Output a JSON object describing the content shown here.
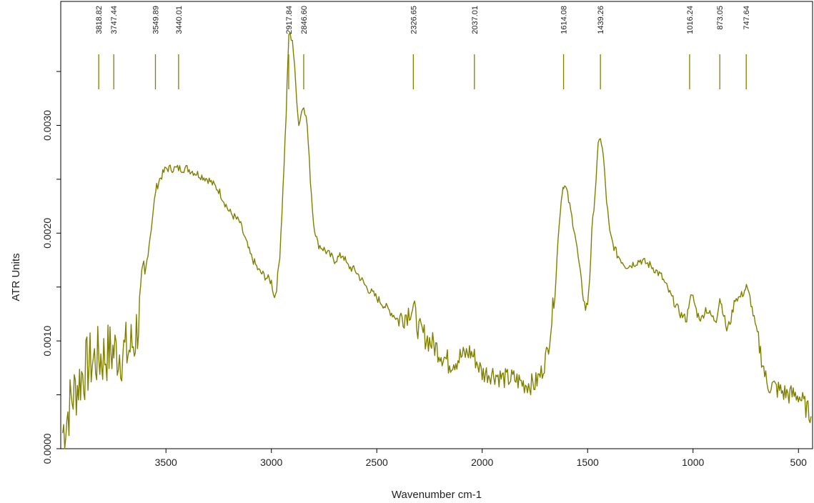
{
  "chart_data": {
    "type": "line",
    "title": "",
    "xlabel": "Wavenumber cm-1",
    "ylabel": "ATR Units",
    "x_reversed": true,
    "xlim": [
      3999,
      433
    ],
    "ylim": [
      0.0,
      0.00415
    ],
    "x_ticks": [
      3500,
      3000,
      2500,
      2000,
      1500,
      1000,
      500
    ],
    "y_ticks": [
      0.0,
      0.001,
      0.002,
      0.003
    ],
    "y_tick_labels": [
      "0.0000",
      "0.0010",
      "0.0020",
      "0.0030"
    ],
    "y_minor_ticks": [
      0.0005,
      0.0015,
      0.0025,
      0.0035
    ],
    "grid": false,
    "line_color": "#808000",
    "series": [
      {
        "x": [
          3990,
          3950,
          3900,
          3860,
          3818,
          3800,
          3770,
          3747,
          3720,
          3700,
          3680,
          3650,
          3620,
          3600,
          3580,
          3560,
          3549,
          3530,
          3500,
          3470,
          3440,
          3400,
          3350,
          3300,
          3250,
          3200,
          3150,
          3100,
          3060,
          3030,
          3000,
          2985,
          2975,
          2960,
          2945,
          2930,
          2917,
          2900,
          2885,
          2870,
          2860,
          2846,
          2830,
          2815,
          2800,
          2780,
          2750,
          2700,
          2660,
          2640,
          2600,
          2550,
          2500,
          2450,
          2400,
          2360,
          2340,
          2326,
          2300,
          2250,
          2200,
          2160,
          2100,
          2060,
          2037,
          2000,
          1950,
          1900,
          1850,
          1800,
          1750,
          1720,
          1690,
          1670,
          1650,
          1635,
          1620,
          1614,
          1600,
          1580,
          1560,
          1540,
          1520,
          1510,
          1500,
          1490,
          1480,
          1460,
          1450,
          1439,
          1425,
          1410,
          1395,
          1380,
          1360,
          1340,
          1320,
          1300,
          1250,
          1200,
          1150,
          1100,
          1060,
          1030,
          1016,
          1000,
          980,
          960,
          940,
          920,
          900,
          890,
          873,
          860,
          840,
          820,
          800,
          780,
          760,
          747,
          730,
          710,
          690,
          670,
          650,
          620,
          600,
          570,
          540,
          500,
          470,
          440
        ],
        "y": [
          0.00015,
          0.00045,
          0.00068,
          0.0008,
          0.00085,
          0.00085,
          0.0009,
          0.0009,
          0.0009,
          0.0009,
          0.0009,
          0.001,
          0.0013,
          0.0016,
          0.0019,
          0.0022,
          0.0024,
          0.0025,
          0.0026,
          0.0026,
          0.0026,
          0.0026,
          0.00255,
          0.0025,
          0.0024,
          0.0022,
          0.0021,
          0.0018,
          0.00165,
          0.0016,
          0.00155,
          0.0014,
          0.0015,
          0.0018,
          0.0024,
          0.0031,
          0.00385,
          0.0038,
          0.0034,
          0.003,
          0.0031,
          0.0032,
          0.003,
          0.0025,
          0.0021,
          0.0019,
          0.00185,
          0.00175,
          0.0018,
          0.0017,
          0.00165,
          0.0015,
          0.0014,
          0.0013,
          0.0012,
          0.00125,
          0.0013,
          0.0013,
          0.0011,
          0.001,
          0.0009,
          0.0008,
          0.00085,
          0.0009,
          0.00085,
          0.0007,
          0.0007,
          0.00065,
          0.00065,
          0.0006,
          0.0006,
          0.0007,
          0.0009,
          0.0012,
          0.0016,
          0.0021,
          0.0024,
          0.00245,
          0.0024,
          0.0022,
          0.002,
          0.0017,
          0.0014,
          0.0013,
          0.00135,
          0.0016,
          0.002,
          0.0025,
          0.0028,
          0.0029,
          0.0027,
          0.0023,
          0.002,
          0.0019,
          0.0018,
          0.00175,
          0.0017,
          0.0017,
          0.00175,
          0.0017,
          0.0016,
          0.0014,
          0.00125,
          0.0012,
          0.0014,
          0.0014,
          0.00125,
          0.0012,
          0.0013,
          0.00125,
          0.0012,
          0.0012,
          0.0014,
          0.0013,
          0.0011,
          0.0012,
          0.0014,
          0.0014,
          0.00145,
          0.0015,
          0.0014,
          0.0012,
          0.001,
          0.0008,
          0.0006,
          0.00058,
          0.00055,
          0.00052,
          0.0005,
          0.0005,
          0.0004,
          0.0003
        ]
      }
    ],
    "peaks": [
      {
        "x": 3818.82,
        "label": "3818.82"
      },
      {
        "x": 3747.44,
        "label": "3747.44"
      },
      {
        "x": 3549.89,
        "label": "3549.89"
      },
      {
        "x": 3440.01,
        "label": "3440.01"
      },
      {
        "x": 2917.84,
        "label": "2917.84"
      },
      {
        "x": 2846.6,
        "label": "2846.60"
      },
      {
        "x": 2326.65,
        "label": "2326.65"
      },
      {
        "x": 2037.01,
        "label": "2037.01"
      },
      {
        "x": 1614.08,
        "label": "1614.08"
      },
      {
        "x": 1439.26,
        "label": "1439.26"
      },
      {
        "x": 1016.24,
        "label": "1016.24"
      },
      {
        "x": 873.05,
        "label": "873.05"
      },
      {
        "x": 747.64,
        "label": "747.64"
      }
    ]
  }
}
